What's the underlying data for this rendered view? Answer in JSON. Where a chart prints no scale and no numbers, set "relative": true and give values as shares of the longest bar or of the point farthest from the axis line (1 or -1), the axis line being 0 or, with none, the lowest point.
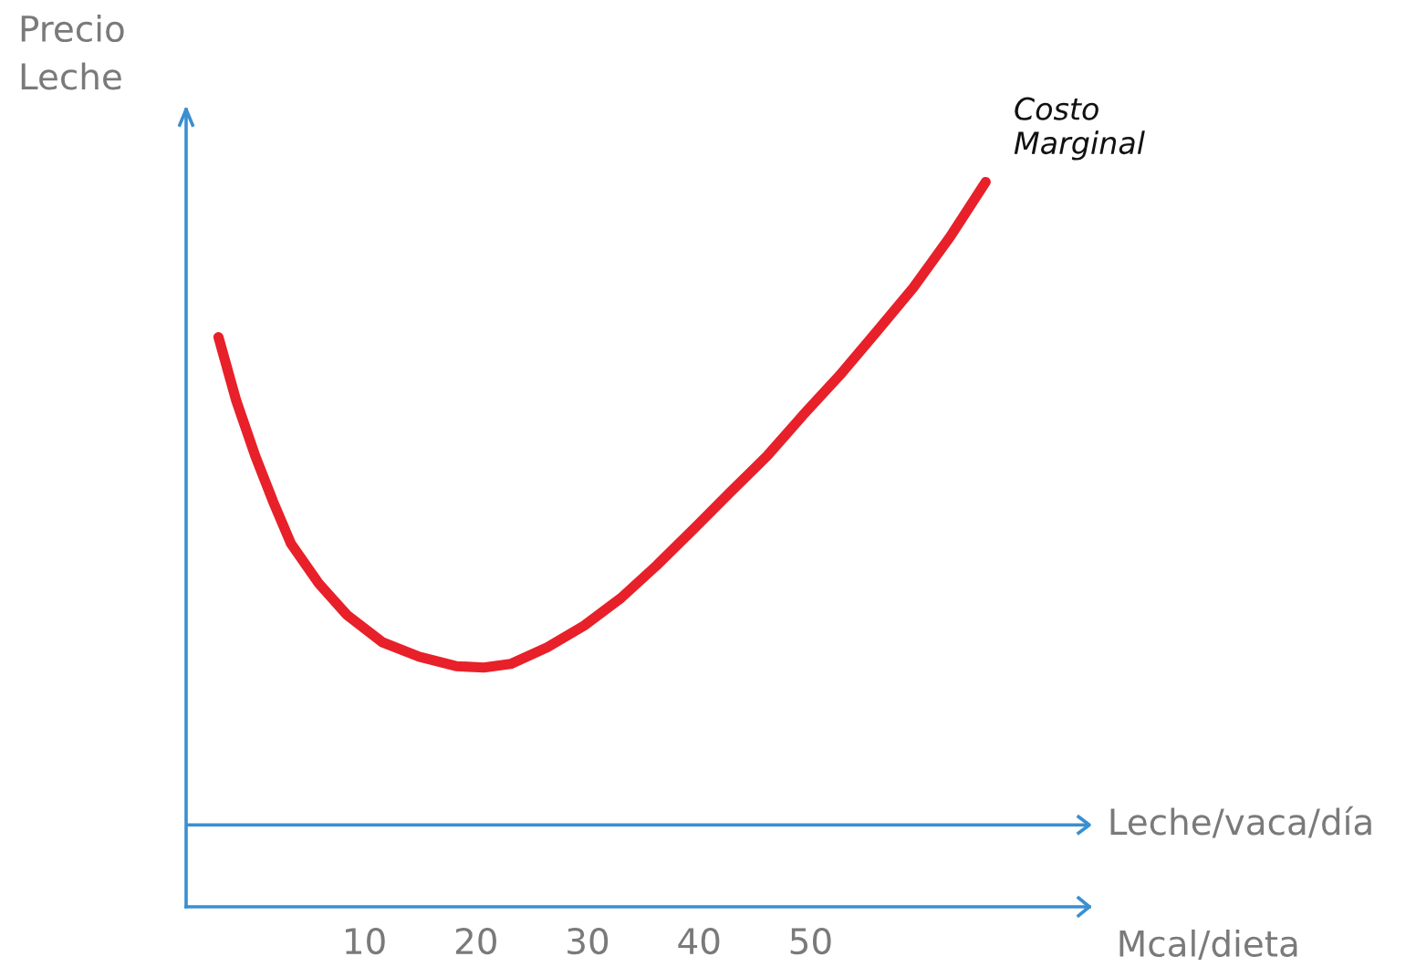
{
  "chart_data": {
    "type": "line",
    "relative": true,
    "ylabel": "Precio\nLeche",
    "xlabel": "Mcal/dieta",
    "ref_lines": [
      {
        "axis": "y",
        "value": 0.113,
        "label": "Leche/vaca/día",
        "color": "#3a8fd0"
      }
    ],
    "xlim": [
      -6,
      75
    ],
    "xticks": [
      10,
      20,
      30,
      40,
      50
    ],
    "grid": false,
    "legend": false,
    "marker": "none",
    "line_style": "solid",
    "series": [
      {
        "name": "Costo\nMarginal",
        "color": "#e8202a",
        "x": [
          -3.1,
          -1.5,
          0.2,
          1.8,
          3.4,
          5.9,
          8.4,
          11.6,
          14.9,
          18.2,
          20.7,
          23.1,
          26.4,
          29.7,
          33.0,
          36.2,
          39.5,
          42.8,
          46.1,
          49.3,
          52.6,
          55.9,
          59.2,
          62.5,
          65.7
        ],
        "values": [
          0.786,
          0.698,
          0.622,
          0.559,
          0.501,
          0.446,
          0.403,
          0.365,
          0.345,
          0.332,
          0.33,
          0.335,
          0.358,
          0.388,
          0.426,
          0.471,
          0.521,
          0.572,
          0.622,
          0.678,
          0.733,
          0.793,
          0.854,
          0.924,
          1.0
        ]
      }
    ]
  }
}
